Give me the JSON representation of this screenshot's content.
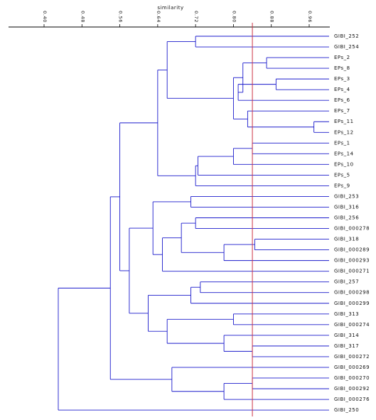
{
  "chart_data": {
    "type": "dendrogram",
    "xlabel": "similarity",
    "x_ticks": [
      0.4,
      0.48,
      0.56,
      0.64,
      0.72,
      0.8,
      0.88,
      0.96
    ],
    "x_tick_labels": [
      "0.40",
      "0.48",
      "0.56",
      "0.64",
      "0.72",
      "0.80",
      "0.88",
      "0.96"
    ],
    "xlim": [
      0.35,
      1.0
    ],
    "cutoff_similarity": 0.84,
    "leaves": [
      "GIBI_252",
      "GIBI_254",
      "EPs_2",
      "EPs_8",
      "EPs_3",
      "EPs_4",
      "EPs_6",
      "EPs_7",
      "EPs_11",
      "EPs_12",
      "EPs_1",
      "EPs_14",
      "EPs_10",
      "EPs_5",
      "EPs_9",
      "GIBI_253",
      "GIBI_316",
      "GIBI_256",
      "GIBI_000278",
      "GIBI_318",
      "GIBI_000289",
      "GIBI_000293",
      "GIBI_000271",
      "GIBI_257",
      "GIBI_000298",
      "GIBI_000299",
      "GIBI_313",
      "GIBI_000274",
      "GIBI_314",
      "GIBI_317",
      "GIBI_000272",
      "GIBI_000269",
      "GIBI_000270",
      "GIBI_000292",
      "GIBI_000276",
      "GIBI_250"
    ],
    "merges": [
      {
        "a": "L:EPs_11",
        "b": "L:EPs_12",
        "sim": 0.97
      },
      {
        "a": "L:EPs_3",
        "b": "L:EPs_4",
        "sim": 0.89
      },
      {
        "a": "L:EPs_2",
        "b": "L:EPs_8",
        "sim": 0.87
      },
      {
        "a": "L:EPs_1",
        "b": "L:EPs_14",
        "sim": 0.84
      },
      {
        "a": "L:GIBI_318",
        "b": "L:GIBI_000289",
        "sim": 0.845
      },
      {
        "a": "L:GIBI_317",
        "b": "L:GIBI_000272",
        "sim": 0.84
      },
      {
        "a": "L:GIBI_000270",
        "b": "L:GIBI_000292",
        "sim": 0.84
      },
      {
        "a": "M1",
        "b": "L:EPs_6",
        "sim": 0.81
      },
      {
        "a": "M0",
        "b": "L:EPs_7",
        "sim": 0.83
      },
      {
        "a": "M2",
        "b": "M7",
        "sim": 0.82
      },
      {
        "a": "M9",
        "b": "M8",
        "sim": 0.8
      },
      {
        "a": "M3",
        "b": "L:EPs_10",
        "sim": 0.8
      },
      {
        "a": "M11",
        "b": "L:EPs_5",
        "sim": 0.725
      },
      {
        "a": "M12",
        "b": "L:EPs_9",
        "sim": 0.72
      },
      {
        "a": "L:GIBI_252",
        "b": "L:GIBI_254",
        "sim": 0.72
      },
      {
        "a": "M14",
        "b": "M10",
        "sim": 0.66
      },
      {
        "a": "M15",
        "b": "M13",
        "sim": 0.64
      },
      {
        "a": "L:GIBI_253",
        "b": "L:GIBI_316",
        "sim": 0.71
      },
      {
        "a": "L:GIBI_256",
        "b": "L:GIBI_000278",
        "sim": 0.72
      },
      {
        "a": "M4",
        "b": "L:GIBI_000293",
        "sim": 0.78
      },
      {
        "a": "M18",
        "b": "M19",
        "sim": 0.69
      },
      {
        "a": "M20",
        "b": "L:GIBI_000271",
        "sim": 0.65
      },
      {
        "a": "M17",
        "b": "M21",
        "sim": 0.63
      },
      {
        "a": "L:GIBI_257",
        "b": "L:GIBI_000298",
        "sim": 0.73
      },
      {
        "a": "M23",
        "b": "L:GIBI_000299",
        "sim": 0.71
      },
      {
        "a": "L:GIBI_313",
        "b": "L:GIBI_000274",
        "sim": 0.8
      },
      {
        "a": "L:GIBI_314",
        "b": "M5",
        "sim": 0.78
      },
      {
        "a": "M25",
        "b": "M26",
        "sim": 0.66
      },
      {
        "a": "M24",
        "b": "M27",
        "sim": 0.62
      },
      {
        "a": "M22",
        "b": "M28",
        "sim": 0.58
      },
      {
        "a": "M16",
        "b": "M29",
        "sim": 0.56
      },
      {
        "a": "M6",
        "b": "L:GIBI_000276",
        "sim": 0.78
      },
      {
        "a": "L:GIBI_000269",
        "b": "M31",
        "sim": 0.67
      },
      {
        "a": "M30",
        "b": "M32",
        "sim": 0.54
      },
      {
        "a": "M33",
        "b": "L:GIBI_250",
        "sim": 0.43
      }
    ],
    "colors": {
      "branches": "#1a1acc",
      "cutoff": "#cc3344",
      "axis": "#000000"
    }
  }
}
